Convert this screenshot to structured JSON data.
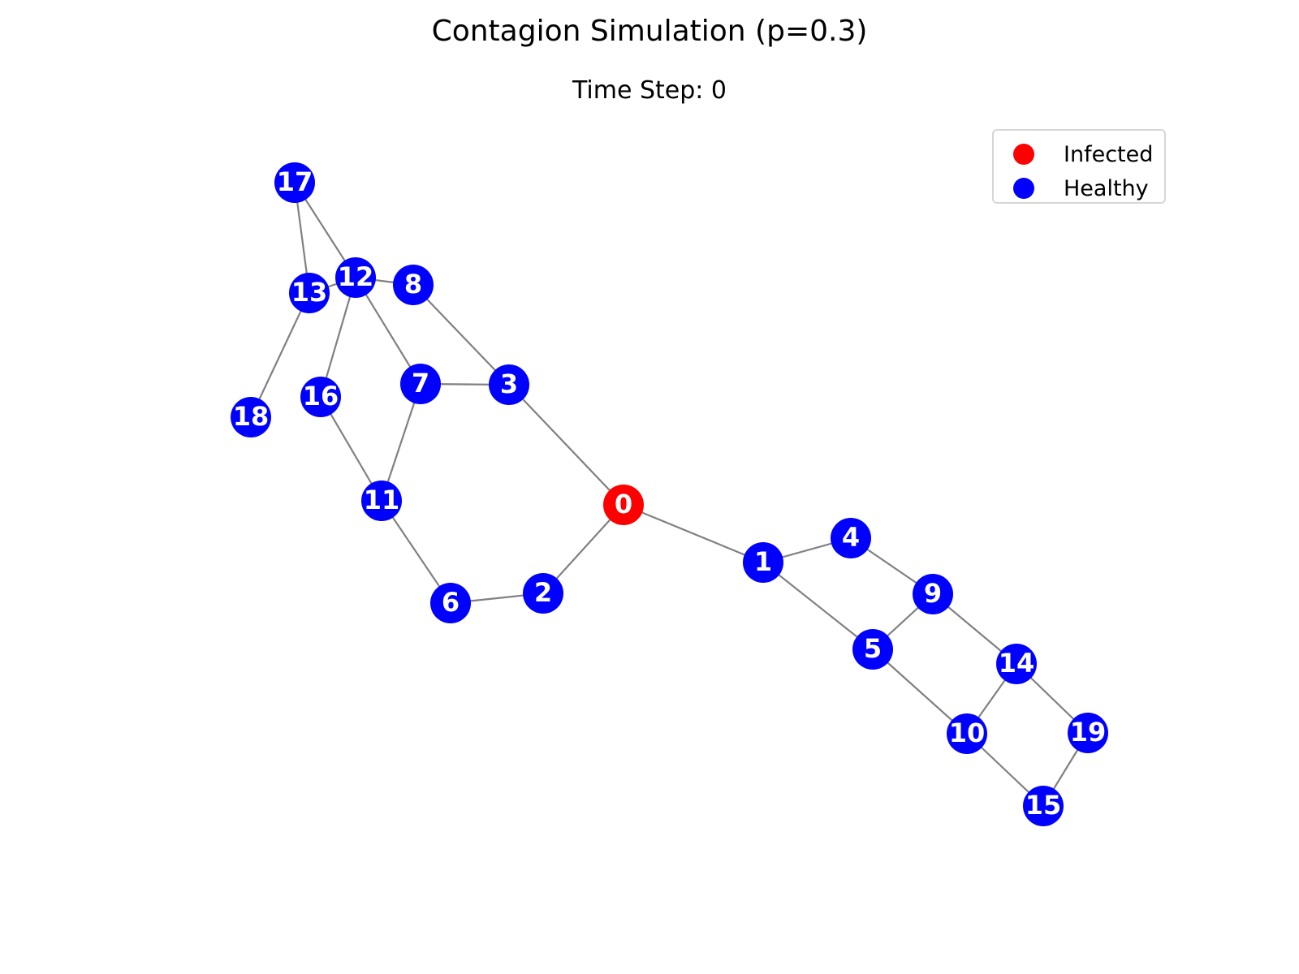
{
  "title": "Contagion Simulation (p=0.3)",
  "subtitle": "Time Step: 0",
  "legend": {
    "items": [
      {
        "label": "Infected",
        "color": "#ff0000"
      },
      {
        "label": "Healthy",
        "color": "#0000ff"
      }
    ]
  },
  "colors": {
    "infected": "#ff0000",
    "healthy": "#0000ff",
    "edge": "#808080",
    "node_label": "#ffffff"
  },
  "graph": {
    "nodes": [
      {
        "id": "0",
        "state": "infected"
      },
      {
        "id": "1",
        "state": "healthy"
      },
      {
        "id": "2",
        "state": "healthy"
      },
      {
        "id": "3",
        "state": "healthy"
      },
      {
        "id": "4",
        "state": "healthy"
      },
      {
        "id": "5",
        "state": "healthy"
      },
      {
        "id": "6",
        "state": "healthy"
      },
      {
        "id": "7",
        "state": "healthy"
      },
      {
        "id": "8",
        "state": "healthy"
      },
      {
        "id": "9",
        "state": "healthy"
      },
      {
        "id": "10",
        "state": "healthy"
      },
      {
        "id": "11",
        "state": "healthy"
      },
      {
        "id": "12",
        "state": "healthy"
      },
      {
        "id": "13",
        "state": "healthy"
      },
      {
        "id": "14",
        "state": "healthy"
      },
      {
        "id": "15",
        "state": "healthy"
      },
      {
        "id": "16",
        "state": "healthy"
      },
      {
        "id": "17",
        "state": "healthy"
      },
      {
        "id": "18",
        "state": "healthy"
      },
      {
        "id": "19",
        "state": "healthy"
      }
    ],
    "edges": [
      [
        "0",
        "1"
      ],
      [
        "0",
        "2"
      ],
      [
        "0",
        "3"
      ],
      [
        "1",
        "4"
      ],
      [
        "1",
        "5"
      ],
      [
        "4",
        "9"
      ],
      [
        "5",
        "9"
      ],
      [
        "9",
        "14"
      ],
      [
        "5",
        "10"
      ],
      [
        "10",
        "14"
      ],
      [
        "14",
        "19"
      ],
      [
        "10",
        "15"
      ],
      [
        "15",
        "19"
      ],
      [
        "2",
        "6"
      ],
      [
        "6",
        "11"
      ],
      [
        "11",
        "7"
      ],
      [
        "11",
        "16"
      ],
      [
        "7",
        "3"
      ],
      [
        "3",
        "8"
      ],
      [
        "7",
        "12"
      ],
      [
        "12",
        "8"
      ],
      [
        "13",
        "12"
      ],
      [
        "12",
        "16"
      ],
      [
        "12",
        "17"
      ],
      [
        "17",
        "13"
      ],
      [
        "13",
        "18"
      ]
    ]
  }
}
